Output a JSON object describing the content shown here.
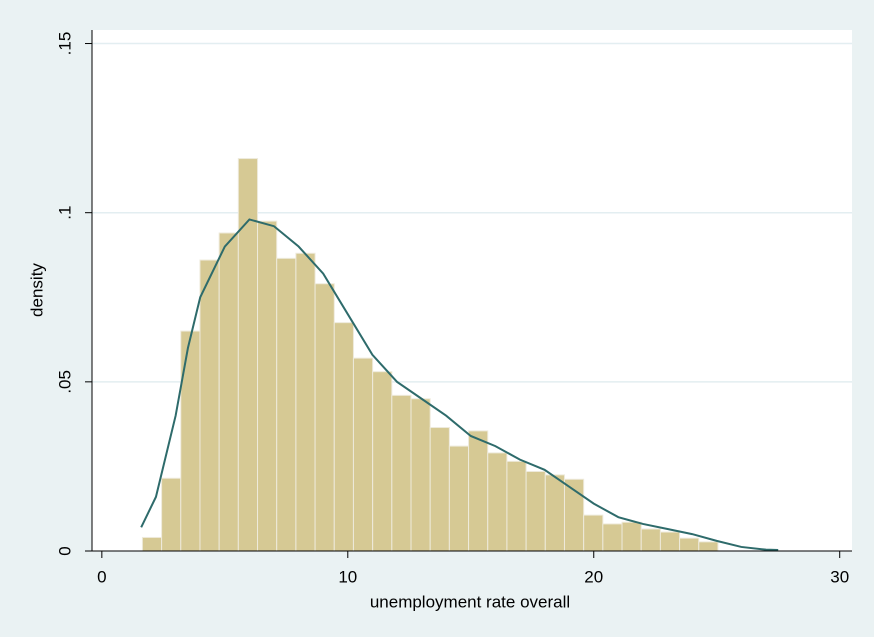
{
  "chart_data": {
    "type": "histogram",
    "x_label": "unemployment rate overall",
    "y_label": "density",
    "bins": [
      1.65,
      2.43,
      3.21,
      3.99,
      4.77,
      5.55,
      6.33,
      7.11,
      7.89,
      8.67,
      9.45,
      10.23,
      11.01,
      11.79,
      12.57,
      13.35,
      14.13,
      14.91,
      15.69,
      16.47,
      17.25,
      18.03,
      18.81,
      19.59,
      20.37,
      21.15,
      21.93,
      22.71,
      23.49,
      24.27,
      25.05
    ],
    "values": [
      0.004,
      0.0215,
      0.065,
      0.086,
      0.094,
      0.116,
      0.0975,
      0.0865,
      0.088,
      0.079,
      0.0675,
      0.057,
      0.053,
      0.046,
      0.045,
      0.0365,
      0.031,
      0.0355,
      0.029,
      0.0265,
      0.0235,
      0.0225,
      0.0212,
      0.0106,
      0.008,
      0.0085,
      0.0065,
      0.0056,
      0.0038,
      0.0027
    ],
    "color": "#d6c994",
    "density": {
      "color": "#2e6b6b",
      "x": [
        1.6,
        2.2,
        3,
        3.5,
        4,
        5,
        6,
        7,
        8,
        9,
        10,
        11,
        12,
        13,
        14,
        15,
        16,
        17,
        18,
        19,
        20,
        21,
        22,
        23,
        24,
        25,
        26,
        27,
        27.5
      ],
      "values": [
        0.007,
        0.016,
        0.04,
        0.06,
        0.075,
        0.09,
        0.098,
        0.096,
        0.09,
        0.082,
        0.07,
        0.058,
        0.05,
        0.045,
        0.04,
        0.034,
        0.031,
        0.027,
        0.024,
        0.019,
        0.014,
        0.01,
        0.008,
        0.0065,
        0.005,
        0.003,
        0.0012,
        0.0004,
        0.0003
      ]
    },
    "xlim": [
      -0.4,
      30.5
    ],
    "ylim": [
      0,
      0.154
    ],
    "xticks": [
      0,
      10,
      20,
      30
    ],
    "yticks": [
      0,
      {
        "value": 0.05,
        "label": ".05"
      },
      {
        "value": 0.1,
        "label": ".1"
      },
      {
        "value": 0.15,
        "label": ".15"
      }
    ],
    "grid": true
  }
}
